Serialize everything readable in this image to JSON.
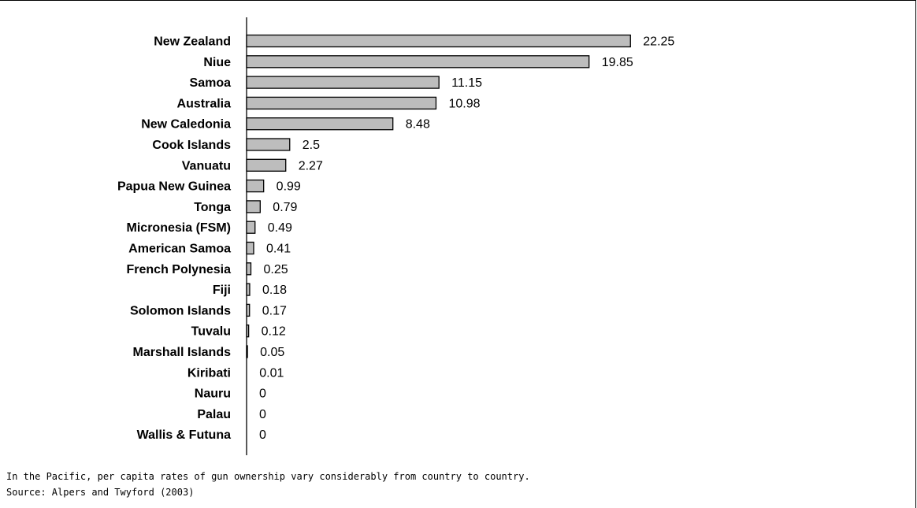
{
  "chart_data": {
    "type": "bar",
    "orientation": "horizontal",
    "categories": [
      "New Zealand",
      "Niue",
      "Samoa",
      "Australia",
      "New Caledonia",
      "Cook Islands",
      "Vanuatu",
      "Papua New Guinea",
      "Tonga",
      "Micronesia (FSM)",
      "American Samoa",
      "French Polynesia",
      "Fiji",
      "Solomon Islands",
      "Tuvalu",
      "Marshall Islands",
      "Kiribati",
      "Nauru",
      "Palau",
      "Wallis & Futuna"
    ],
    "values": [
      22.25,
      19.85,
      11.15,
      10.98,
      8.48,
      2.5,
      2.27,
      0.99,
      0.79,
      0.49,
      0.41,
      0.25,
      0.18,
      0.17,
      0.12,
      0.05,
      0.01,
      0,
      0,
      0
    ],
    "value_labels": [
      "22.25",
      "19.85",
      "11.15",
      "10.98",
      "8.48",
      "2.5",
      "2.27",
      "0.99",
      "0.79",
      "0.49",
      "0.41",
      "0.25",
      "0.18",
      "0.17",
      "0.12",
      "0.05",
      "0.01",
      "0",
      "0",
      "0"
    ],
    "bar_color": "#bdbdbd",
    "grid": false,
    "legend": "none"
  },
  "caption": "In the Pacific, per capita rates of gun ownership vary considerably from country to country.",
  "source": "Source: Alpers and Twyford (2003)"
}
